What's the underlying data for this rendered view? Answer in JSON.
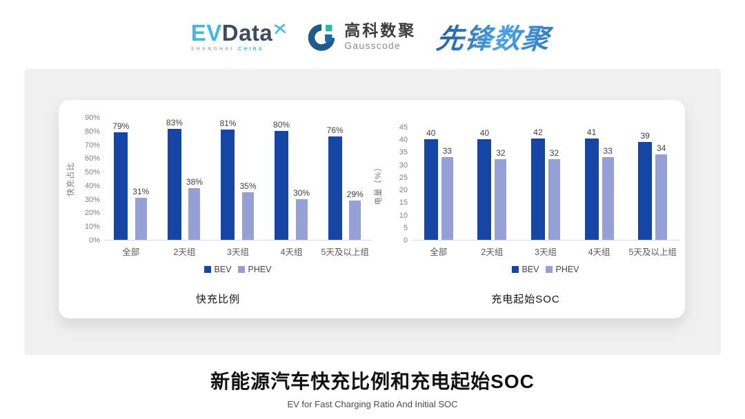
{
  "header": {
    "evdata": {
      "ev": "EV",
      "data": "Data",
      "sub_left": "SHANGHAI",
      "sub_right": "CHINA"
    },
    "gausscode": {
      "cn": "高科数聚",
      "en": "Gausscode"
    },
    "xianfeng": {
      "text": "先锋数聚"
    }
  },
  "colors": {
    "bev": "#1646a5",
    "phev": "#94a0d6",
    "panel_gray": "#f0f0f0",
    "evdata_blue": "#41b8e6",
    "evdata_dark": "#3d4b5e",
    "gauss_navy": "#1d5b8d",
    "gauss_teal": "#2eb8ab",
    "gauss_blue": "#1d6cab"
  },
  "chart_data": [
    {
      "type": "bar",
      "title": "快充比例",
      "xlabel": "",
      "ylabel": "快充占比",
      "categories": [
        "全部",
        "2天组",
        "3天组",
        "4天组",
        "5天及以上组"
      ],
      "series": [
        {
          "name": "BEV",
          "color": "#1646a5",
          "values": [
            79,
            83,
            81,
            80,
            76
          ],
          "data_labels": [
            "79%",
            "83%",
            "81%",
            "80%",
            "76%"
          ]
        },
        {
          "name": "PHEV",
          "color": "#94a0d6",
          "values": [
            31,
            38,
            35,
            30,
            29
          ],
          "data_labels": [
            "31%",
            "38%",
            "35%",
            "30%",
            "29%"
          ]
        }
      ],
      "ylim": [
        0,
        90
      ],
      "ytick_step": 10,
      "ytick_suffix": "%",
      "grid": false,
      "legend_position": "bottom"
    },
    {
      "type": "bar",
      "title": "充电起始SOC",
      "xlabel": "",
      "ylabel": "电量（%）",
      "categories": [
        "全部",
        "2天组",
        "3天组",
        "4天组",
        "5天及以上组"
      ],
      "series": [
        {
          "name": "BEV",
          "color": "#1646a5",
          "values": [
            40,
            40,
            42,
            41,
            39
          ],
          "data_labels": [
            "40",
            "40",
            "42",
            "41",
            "39"
          ]
        },
        {
          "name": "PHEV",
          "color": "#94a0d6",
          "values": [
            33,
            32,
            32,
            33,
            34
          ],
          "data_labels": [
            "33",
            "32",
            "32",
            "33",
            "34"
          ]
        }
      ],
      "ylim": [
        0,
        45
      ],
      "ytick_step": 5,
      "ytick_suffix": "",
      "grid": false,
      "legend_position": "bottom"
    }
  ],
  "footer": {
    "title": "新能源汽车快充比例和充电起始SOC",
    "subtitle": "EV for Fast Charging Ratio And Initial SOC"
  }
}
